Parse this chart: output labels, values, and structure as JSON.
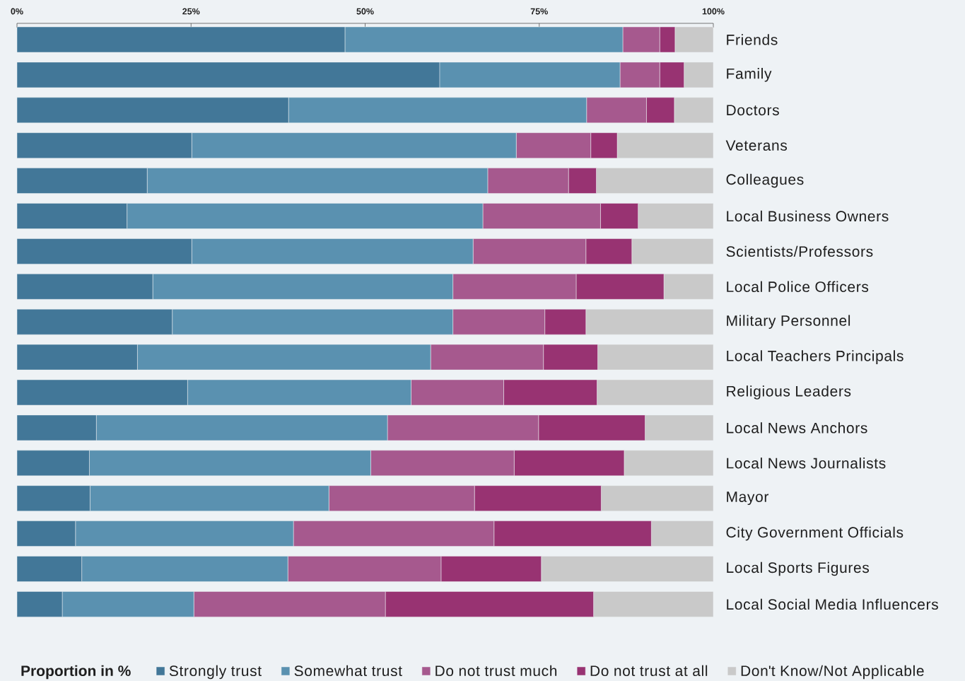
{
  "chart_data": {
    "type": "bar",
    "orientation": "horizontal",
    "stacked": true,
    "categories": [
      "Friends",
      "Family",
      "Doctors",
      "Veterans",
      "Colleagues",
      "Local Business Owners",
      "Scientists/Professors",
      "Local Police Officers",
      "Military Personnel",
      "Local Teachers Principals",
      "Religious Leaders",
      "Local News Anchors",
      "Local News Journalists",
      "Mayor",
      "City Government Officials",
      "Local Sports Figures",
      "Local Social Media Influencers"
    ],
    "series": [
      {
        "name": "Strongly trust",
        "color": "#427798",
        "values": [
          47.1,
          60.7,
          39.0,
          25.1,
          18.7,
          15.8,
          25.1,
          19.5,
          22.3,
          17.3,
          24.5,
          11.4,
          10.4,
          10.5,
          8.4,
          9.3,
          6.5
        ]
      },
      {
        "name": "Somewhat trust",
        "color": "#5a91b0",
        "values": [
          39.9,
          25.9,
          42.8,
          46.6,
          48.9,
          51.1,
          40.4,
          43.1,
          40.3,
          42.1,
          32.1,
          41.8,
          40.4,
          34.3,
          31.3,
          29.6,
          18.9
        ]
      },
      {
        "name": "Do not trust much",
        "color": "#a6598e",
        "values": [
          5.3,
          5.7,
          8.6,
          10.7,
          11.6,
          16.9,
          16.2,
          17.7,
          13.2,
          16.2,
          13.3,
          21.7,
          20.6,
          20.9,
          28.8,
          22.0,
          27.5
        ]
      },
      {
        "name": "Do not trust at all",
        "color": "#983372",
        "values": [
          2.2,
          3.5,
          4.0,
          3.8,
          4.0,
          5.4,
          6.6,
          12.6,
          5.9,
          7.8,
          13.4,
          15.3,
          15.8,
          18.2,
          22.6,
          14.4,
          29.9
        ]
      },
      {
        "name": "Don't Know/Not Applicable",
        "color": "#c9c9c9",
        "values": [
          5.5,
          4.2,
          5.6,
          13.8,
          16.8,
          10.8,
          11.7,
          7.1,
          18.3,
          16.6,
          16.7,
          9.8,
          12.8,
          16.1,
          8.9,
          24.7,
          17.2
        ]
      }
    ],
    "xlim": [
      0,
      100
    ],
    "xticks": [
      {
        "value": 0,
        "label": "0%"
      },
      {
        "value": 25,
        "label": "25%"
      },
      {
        "value": 50,
        "label": "50%"
      },
      {
        "value": 75,
        "label": "75%"
      },
      {
        "value": 100,
        "label": "100%"
      }
    ],
    "legend": "bottom",
    "legend_title": "Proportion in %"
  }
}
